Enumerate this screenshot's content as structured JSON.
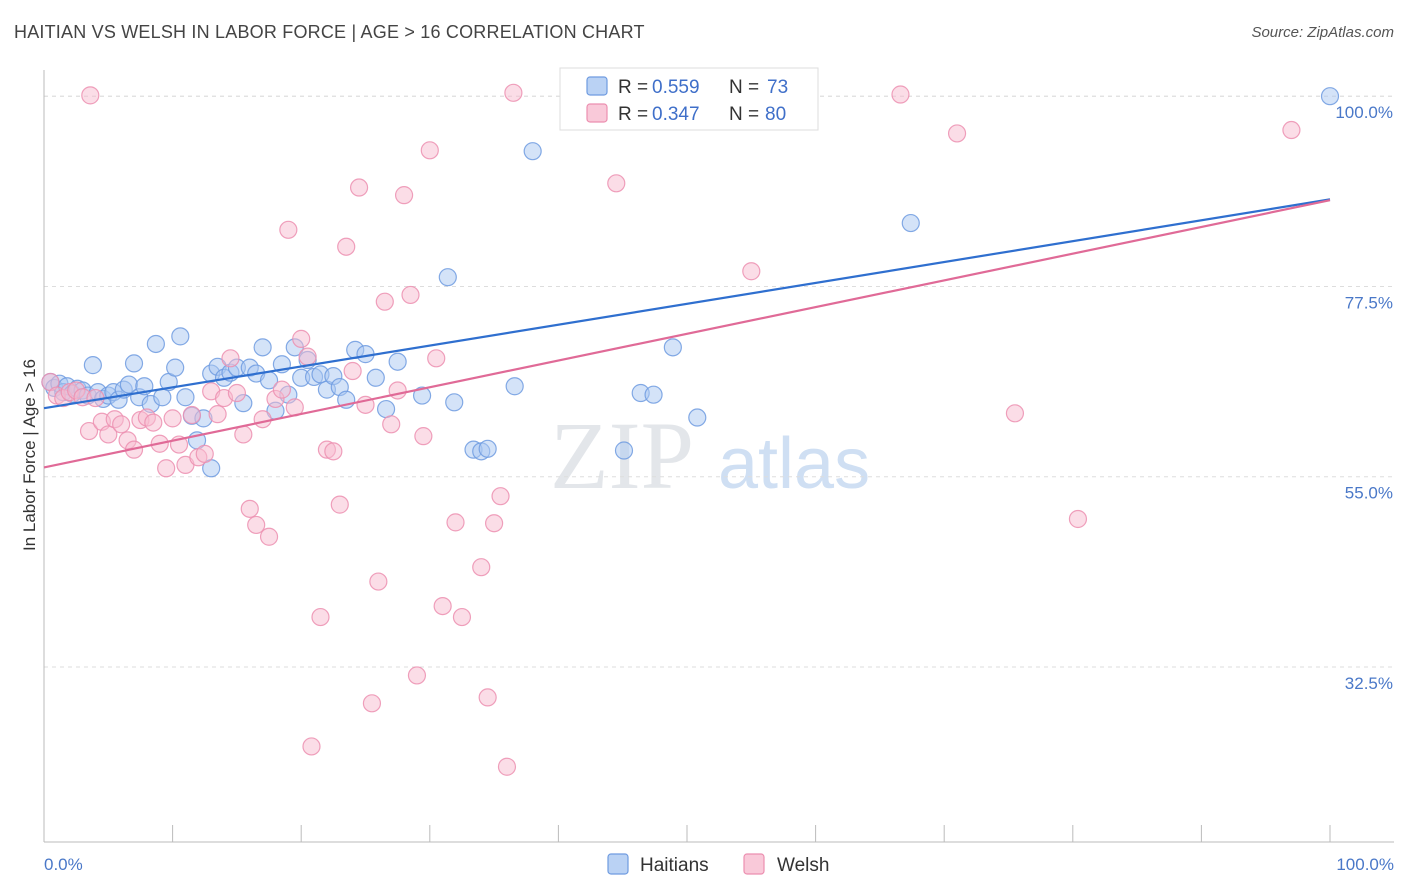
{
  "title": "HAITIAN VS WELSH IN LABOR FORCE | AGE > 16 CORRELATION CHART",
  "source": "Source: ZipAtlas.com",
  "watermark": {
    "zip": "ZIP",
    "atlas": "atlas"
  },
  "chart_data": {
    "type": "scatter",
    "ylabel": "In Labor Force | Age > 16",
    "x_tick_labels": [
      "0.0%",
      "100.0%"
    ],
    "y_tick_labels": [
      "100.0%",
      "77.5%",
      "55.0%",
      "32.5%"
    ],
    "y_tick_values": [
      100.0,
      77.5,
      55.0,
      32.5
    ],
    "xlim": [
      0,
      100
    ],
    "ylim": [
      11.8,
      103.1
    ],
    "grid": true,
    "legend_position": "top-center",
    "colors": {
      "haitians_fill": "#a9c7f1",
      "haitians_stroke": "#6f9be0",
      "haitians_line": "#2f6fcf",
      "welsh_fill": "#f8bcd0",
      "welsh_stroke": "#ec8fb0",
      "welsh_line": "#e06a97"
    },
    "stats": [
      {
        "r_label": "R = ",
        "r_value": "0.559",
        "n_label": "N = ",
        "n_value": "73"
      },
      {
        "r_label": "R = ",
        "r_value": "0.347",
        "n_label": "N = ",
        "n_value": "80"
      }
    ],
    "series": [
      {
        "name": "Haitians",
        "trend": {
          "x": [
            0,
            100
          ],
          "y": [
            63.1,
            87.8
          ]
        },
        "points": [
          [
            0.5,
            66.2
          ],
          [
            0.8,
            65.5
          ],
          [
            1.2,
            66.0
          ],
          [
            1.5,
            65.0
          ],
          [
            1.8,
            65.7
          ],
          [
            2.2,
            64.8
          ],
          [
            2.6,
            65.4
          ],
          [
            3.0,
            65.2
          ],
          [
            3.4,
            64.6
          ],
          [
            3.8,
            68.2
          ],
          [
            4.2,
            65.0
          ],
          [
            4.6,
            64.2
          ],
          [
            5.0,
            64.6
          ],
          [
            5.4,
            65.0
          ],
          [
            5.8,
            64.1
          ],
          [
            6.2,
            65.3
          ],
          [
            6.6,
            65.9
          ],
          [
            7.0,
            68.4
          ],
          [
            7.4,
            64.4
          ],
          [
            7.8,
            65.7
          ],
          [
            8.3,
            63.6
          ],
          [
            8.7,
            70.7
          ],
          [
            9.2,
            64.4
          ],
          [
            9.7,
            66.2
          ],
          [
            10.2,
            67.9
          ],
          [
            10.6,
            71.6
          ],
          [
            11.0,
            64.4
          ],
          [
            11.5,
            62.2
          ],
          [
            11.9,
            59.3
          ],
          [
            12.4,
            61.9
          ],
          [
            13.0,
            67.2
          ],
          [
            13.5,
            68.0
          ],
          [
            14.0,
            66.7
          ],
          [
            14.5,
            67.3
          ],
          [
            15.0,
            67.9
          ],
          [
            15.5,
            63.7
          ],
          [
            16.0,
            67.9
          ],
          [
            16.5,
            67.2
          ],
          [
            17.0,
            70.3
          ],
          [
            17.5,
            66.4
          ],
          [
            18.0,
            62.8
          ],
          [
            18.5,
            68.3
          ],
          [
            19.0,
            64.7
          ],
          [
            19.5,
            70.3
          ],
          [
            20.0,
            66.7
          ],
          [
            20.5,
            68.8
          ],
          [
            21.0,
            66.8
          ],
          [
            21.5,
            67.1
          ],
          [
            22.0,
            65.3
          ],
          [
            22.5,
            66.9
          ],
          [
            23.0,
            65.6
          ],
          [
            23.5,
            64.1
          ],
          [
            24.2,
            70.0
          ],
          [
            25.0,
            69.5
          ],
          [
            25.8,
            66.7
          ],
          [
            26.6,
            63.0
          ],
          [
            27.5,
            68.6
          ],
          [
            29.4,
            64.6
          ],
          [
            31.4,
            78.6
          ],
          [
            31.9,
            63.8
          ],
          [
            33.4,
            58.2
          ],
          [
            34.0,
            58.0
          ],
          [
            34.5,
            58.3
          ],
          [
            36.6,
            65.7
          ],
          [
            38.0,
            93.5
          ],
          [
            45.1,
            58.1
          ],
          [
            46.4,
            64.9
          ],
          [
            47.4,
            64.7
          ],
          [
            48.9,
            70.3
          ],
          [
            50.8,
            62.0
          ],
          [
            67.4,
            85.0
          ],
          [
            100.0,
            100.0
          ],
          [
            13.0,
            56.0
          ]
        ]
      },
      {
        "name": "Welsh",
        "trend": {
          "x": [
            0,
            100
          ],
          "y": [
            56.1,
            87.7
          ]
        },
        "points": [
          [
            0.5,
            66.2
          ],
          [
            1.0,
            64.6
          ],
          [
            1.5,
            64.3
          ],
          [
            2.0,
            65.0
          ],
          [
            2.5,
            65.2
          ],
          [
            3.0,
            64.4
          ],
          [
            3.5,
            60.4
          ],
          [
            4.0,
            64.3
          ],
          [
            4.5,
            61.5
          ],
          [
            5.0,
            60.0
          ],
          [
            5.5,
            61.8
          ],
          [
            6.0,
            61.2
          ],
          [
            6.5,
            59.3
          ],
          [
            7.0,
            58.2
          ],
          [
            7.5,
            61.7
          ],
          [
            8.0,
            62.0
          ],
          [
            8.5,
            61.4
          ],
          [
            9.0,
            58.9
          ],
          [
            9.5,
            56.0
          ],
          [
            10.0,
            61.9
          ],
          [
            10.5,
            58.8
          ],
          [
            11.0,
            56.4
          ],
          [
            11.5,
            62.3
          ],
          [
            12.0,
            57.3
          ],
          [
            12.5,
            57.7
          ],
          [
            13.0,
            65.1
          ],
          [
            13.5,
            62.4
          ],
          [
            14.0,
            64.3
          ],
          [
            14.5,
            69.0
          ],
          [
            15.0,
            64.9
          ],
          [
            15.5,
            60.0
          ],
          [
            16.0,
            51.2
          ],
          [
            16.5,
            49.3
          ],
          [
            17.0,
            61.8
          ],
          [
            17.5,
            47.9
          ],
          [
            18.0,
            64.2
          ],
          [
            18.5,
            65.3
          ],
          [
            19.0,
            84.2
          ],
          [
            19.5,
            63.2
          ],
          [
            20.0,
            71.3
          ],
          [
            20.5,
            69.2
          ],
          [
            21.5,
            38.4
          ],
          [
            22.0,
            58.2
          ],
          [
            22.5,
            58.0
          ],
          [
            23.0,
            51.7
          ],
          [
            23.5,
            82.2
          ],
          [
            24.0,
            67.5
          ],
          [
            24.5,
            89.2
          ],
          [
            25.0,
            63.5
          ],
          [
            25.5,
            28.2
          ],
          [
            26.0,
            42.6
          ],
          [
            26.5,
            75.7
          ],
          [
            27.0,
            61.2
          ],
          [
            27.5,
            65.2
          ],
          [
            28.0,
            88.3
          ],
          [
            28.5,
            76.5
          ],
          [
            29.0,
            31.5
          ],
          [
            29.5,
            59.8
          ],
          [
            30.0,
            93.6
          ],
          [
            30.5,
            69.0
          ],
          [
            31.0,
            39.7
          ],
          [
            32.0,
            49.6
          ],
          [
            32.5,
            38.4
          ],
          [
            34.0,
            44.3
          ],
          [
            34.5,
            28.9
          ],
          [
            35.0,
            49.5
          ],
          [
            35.5,
            52.7
          ],
          [
            36.0,
            20.7
          ],
          [
            36.5,
            100.4
          ],
          [
            44.5,
            89.7
          ],
          [
            57.4,
            100.0
          ],
          [
            66.6,
            100.2
          ],
          [
            71.0,
            95.6
          ],
          [
            75.5,
            62.5
          ],
          [
            80.4,
            50.0
          ],
          [
            97.0,
            96.0
          ],
          [
            42.0,
            100.2
          ],
          [
            55.0,
            79.3
          ],
          [
            20.8,
            23.1
          ],
          [
            3.6,
            100.1
          ]
        ]
      }
    ]
  },
  "bottom_legend": [
    "Haitians",
    "Welsh"
  ]
}
